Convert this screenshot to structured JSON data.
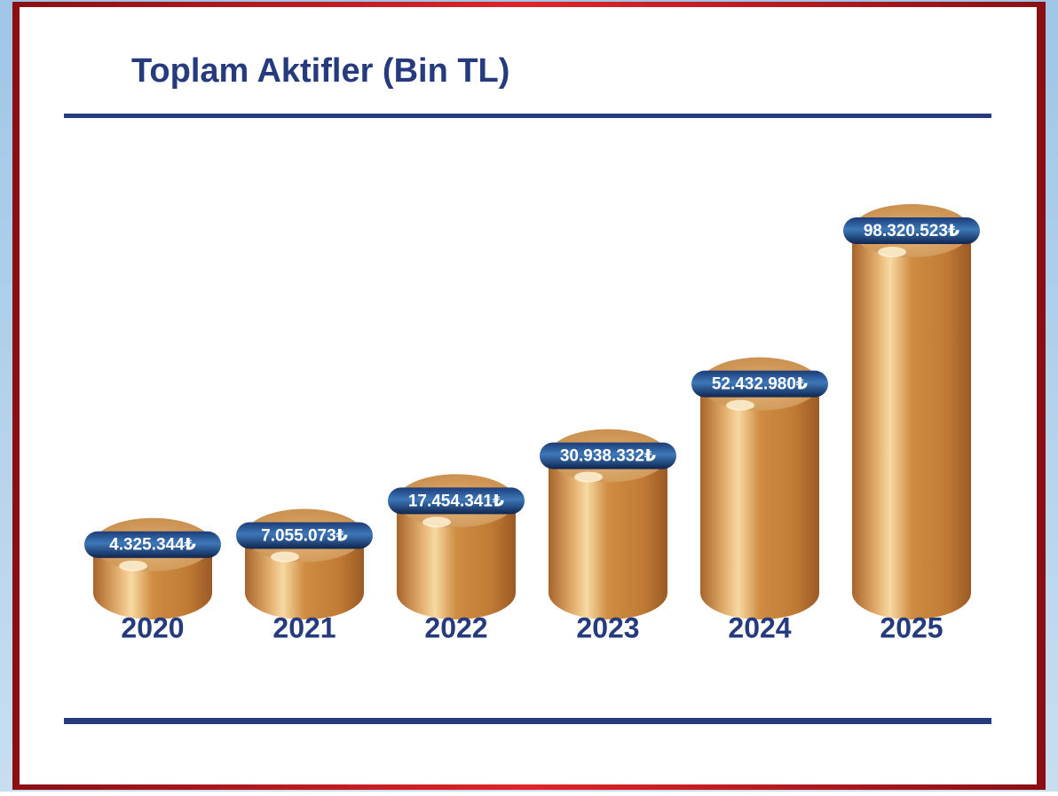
{
  "chart_data": {
    "type": "cylinder-bar",
    "title": "Toplam Aktifler (Bin TL)",
    "categories": [
      "2020",
      "2021",
      "2022",
      "2023",
      "2024",
      "2025"
    ],
    "values": [
      4325344,
      7055073,
      17454341,
      30938332,
      52432980,
      98320523
    ],
    "value_labels": [
      "4.325.344₺",
      "7.055.073₺",
      "17.454.341₺",
      "30.938.332₺",
      "52.432.980₺",
      "98.320.523₺"
    ],
    "color": "#c98437"
  }
}
